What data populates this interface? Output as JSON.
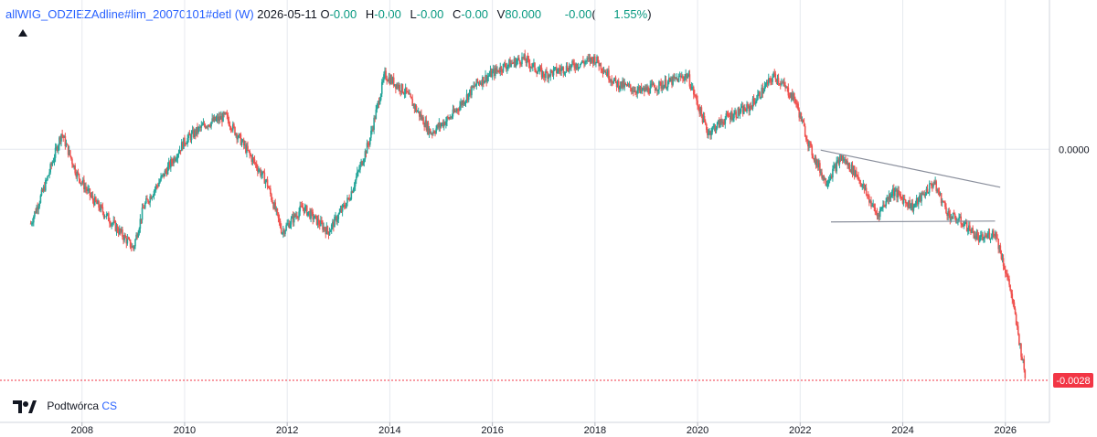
{
  "legend": {
    "symbol": "allWIG_ODZIEZAdline#lim_20070101#detl (W)",
    "date": "2026-05-11",
    "o_label": "O",
    "o_value": "-0.00",
    "h_label": "H",
    "h_value": "-0.00",
    "l_label": "L",
    "l_value": "-0.00",
    "c_label": "C",
    "c_value": "-0.00",
    "v_label": "V",
    "v_value": "80.000",
    "change": "-0.00",
    "change_pct": "1.55%"
  },
  "footer": {
    "author_prefix": "Podtwórca",
    "author_suffix": "CS"
  },
  "colors": {
    "up": "#26a69a",
    "down": "#ef5350",
    "trendline": "#8a8f9c",
    "price_line": "#f23645",
    "grid": "#e6e9ef"
  },
  "chart_data": {
    "type": "candlestick",
    "x_ticks": [
      "2008",
      "2010",
      "2012",
      "2014",
      "2016",
      "2018",
      "2020",
      "2022",
      "2024",
      "2026"
    ],
    "y_ticks": [
      "0.0000"
    ],
    "last_price_label": "-0.0028",
    "ylim": [
      -0.0028,
      0.0012
    ],
    "xlim": [
      2006.9,
      2026.9
    ],
    "grid": true,
    "series": [
      {
        "x": [
          2007.0,
          2007.3,
          2007.6,
          2007.9,
          2008.2,
          2008.6,
          2009.0,
          2009.2,
          2009.6,
          2010.0,
          2010.4,
          2010.8,
          2011.2,
          2011.6,
          2011.9,
          2012.3,
          2012.8,
          2013.2,
          2013.6,
          2013.9,
          2014.3,
          2014.8,
          2015.2,
          2015.7,
          2016.2,
          2016.6,
          2017.0,
          2017.5,
          2018.0,
          2018.4,
          2018.9,
          2019.4,
          2019.8,
          2020.2,
          2020.6,
          2021.0,
          2021.5,
          2021.9,
          2022.2,
          2022.5,
          2022.8,
          2023.1,
          2023.5,
          2023.8,
          2024.2,
          2024.6,
          2024.9,
          2025.2,
          2025.5,
          2025.8,
          2026.1,
          2026.4
        ],
        "y": [
          -0.0009,
          -0.0004,
          0.0002,
          -0.0003,
          -0.0006,
          -0.0009,
          -0.0012,
          -0.0007,
          -0.0003,
          0.0001,
          0.0003,
          0.0004,
          0.0,
          -0.0004,
          -0.001,
          -0.0007,
          -0.001,
          -0.0006,
          0.0001,
          0.0009,
          0.0007,
          0.0002,
          0.0004,
          0.0008,
          0.001,
          0.0011,
          0.0009,
          0.001,
          0.0011,
          0.0008,
          0.0007,
          0.0008,
          0.0009,
          0.0002,
          0.0004,
          0.0005,
          0.0009,
          0.0006,
          0.0,
          -0.0004,
          -0.0001,
          -0.0003,
          -0.0008,
          -0.0005,
          -0.0007,
          -0.0004,
          -0.0008,
          -0.0009,
          -0.0011,
          -0.001,
          -0.0017,
          -0.0028
        ]
      }
    ],
    "trendlines": [
      {
        "x": [
          2022.4,
          2025.9
        ],
        "y": [
          -1e-05,
          -0.00046
        ]
      },
      {
        "x": [
          2022.6,
          2025.8
        ],
        "y": [
          -0.00088,
          -0.00087
        ]
      }
    ]
  }
}
